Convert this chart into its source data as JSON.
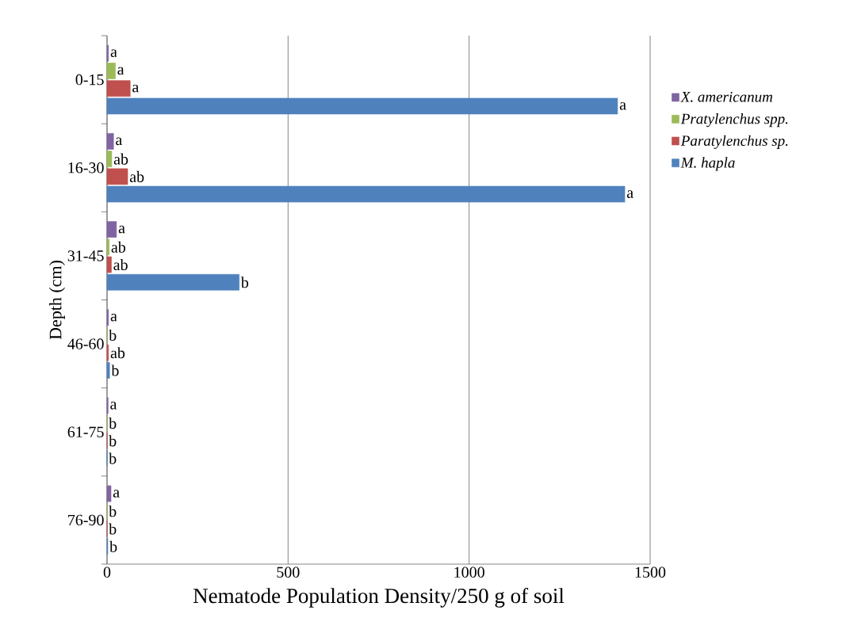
{
  "chart_data": {
    "type": "bar",
    "orientation": "horizontal",
    "xlabel": "Nematode Population Density/250 g of soil",
    "ylabel": "Depth (cm)",
    "categories": [
      "0-15",
      "16-30",
      "31-45",
      "46-60",
      "61-75",
      "76-90"
    ],
    "series": [
      {
        "name": "X. americanum",
        "color": "#8064a2",
        "values": [
          4,
          18,
          26,
          4,
          3,
          11
        ],
        "value_labels": [
          "a",
          "a",
          "a",
          "a",
          "a",
          "a"
        ]
      },
      {
        "name": "Pratylenchus spp.",
        "color": "#9bbb59",
        "values": [
          23,
          13,
          6,
          0,
          0,
          0
        ],
        "value_labels": [
          "a",
          "ab",
          "ab",
          "b",
          "b",
          "b"
        ]
      },
      {
        "name": "Paratylenchus sp.",
        "color": "#c0504d",
        "values": [
          64,
          57,
          12,
          4,
          0,
          0
        ],
        "value_labels": [
          "a",
          "ab",
          "ab",
          "ab",
          "b",
          "b"
        ]
      },
      {
        "name": "M. hapla",
        "color": "#4f81bd",
        "values": [
          1410,
          1430,
          365,
          7,
          0,
          2
        ],
        "value_labels": [
          "a",
          "a",
          "b",
          "b",
          "b",
          "b"
        ]
      }
    ],
    "xlim": [
      0,
      1500
    ],
    "xticks": [
      0,
      500,
      1000,
      1500
    ],
    "grid": "x",
    "legend": "right"
  }
}
